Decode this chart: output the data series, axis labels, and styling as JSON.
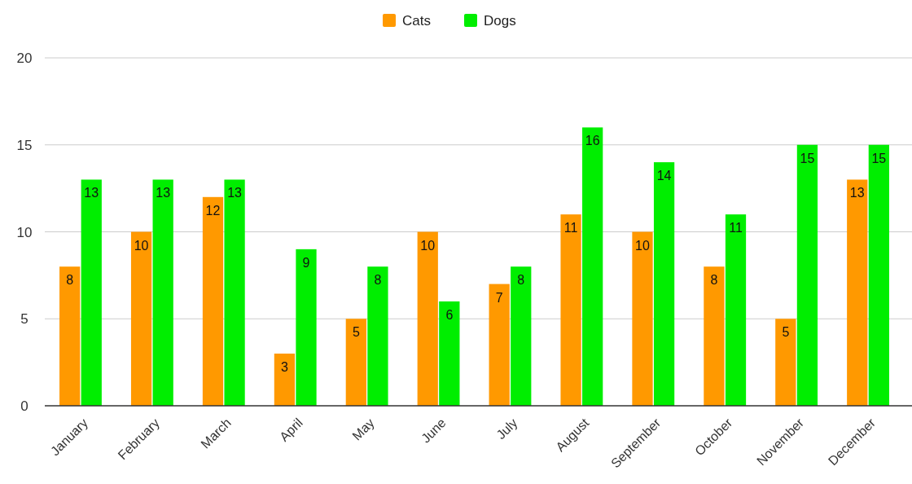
{
  "chart_data": {
    "type": "bar",
    "categories": [
      "January",
      "February",
      "March",
      "April",
      "May",
      "June",
      "July",
      "August",
      "September",
      "October",
      "November",
      "December"
    ],
    "series": [
      {
        "name": "Cats",
        "color": "#ff9900",
        "values": [
          8,
          10,
          12,
          3,
          5,
          10,
          7,
          11,
          10,
          8,
          5,
          13
        ]
      },
      {
        "name": "Dogs",
        "color": "#00ee00",
        "values": [
          13,
          13,
          13,
          9,
          8,
          6,
          8,
          16,
          14,
          11,
          15,
          15
        ]
      }
    ],
    "ylim": [
      0,
      20
    ],
    "yticks": [
      0,
      5,
      10,
      15,
      20
    ],
    "grid": "y",
    "legend": "top",
    "data_labels": true
  }
}
